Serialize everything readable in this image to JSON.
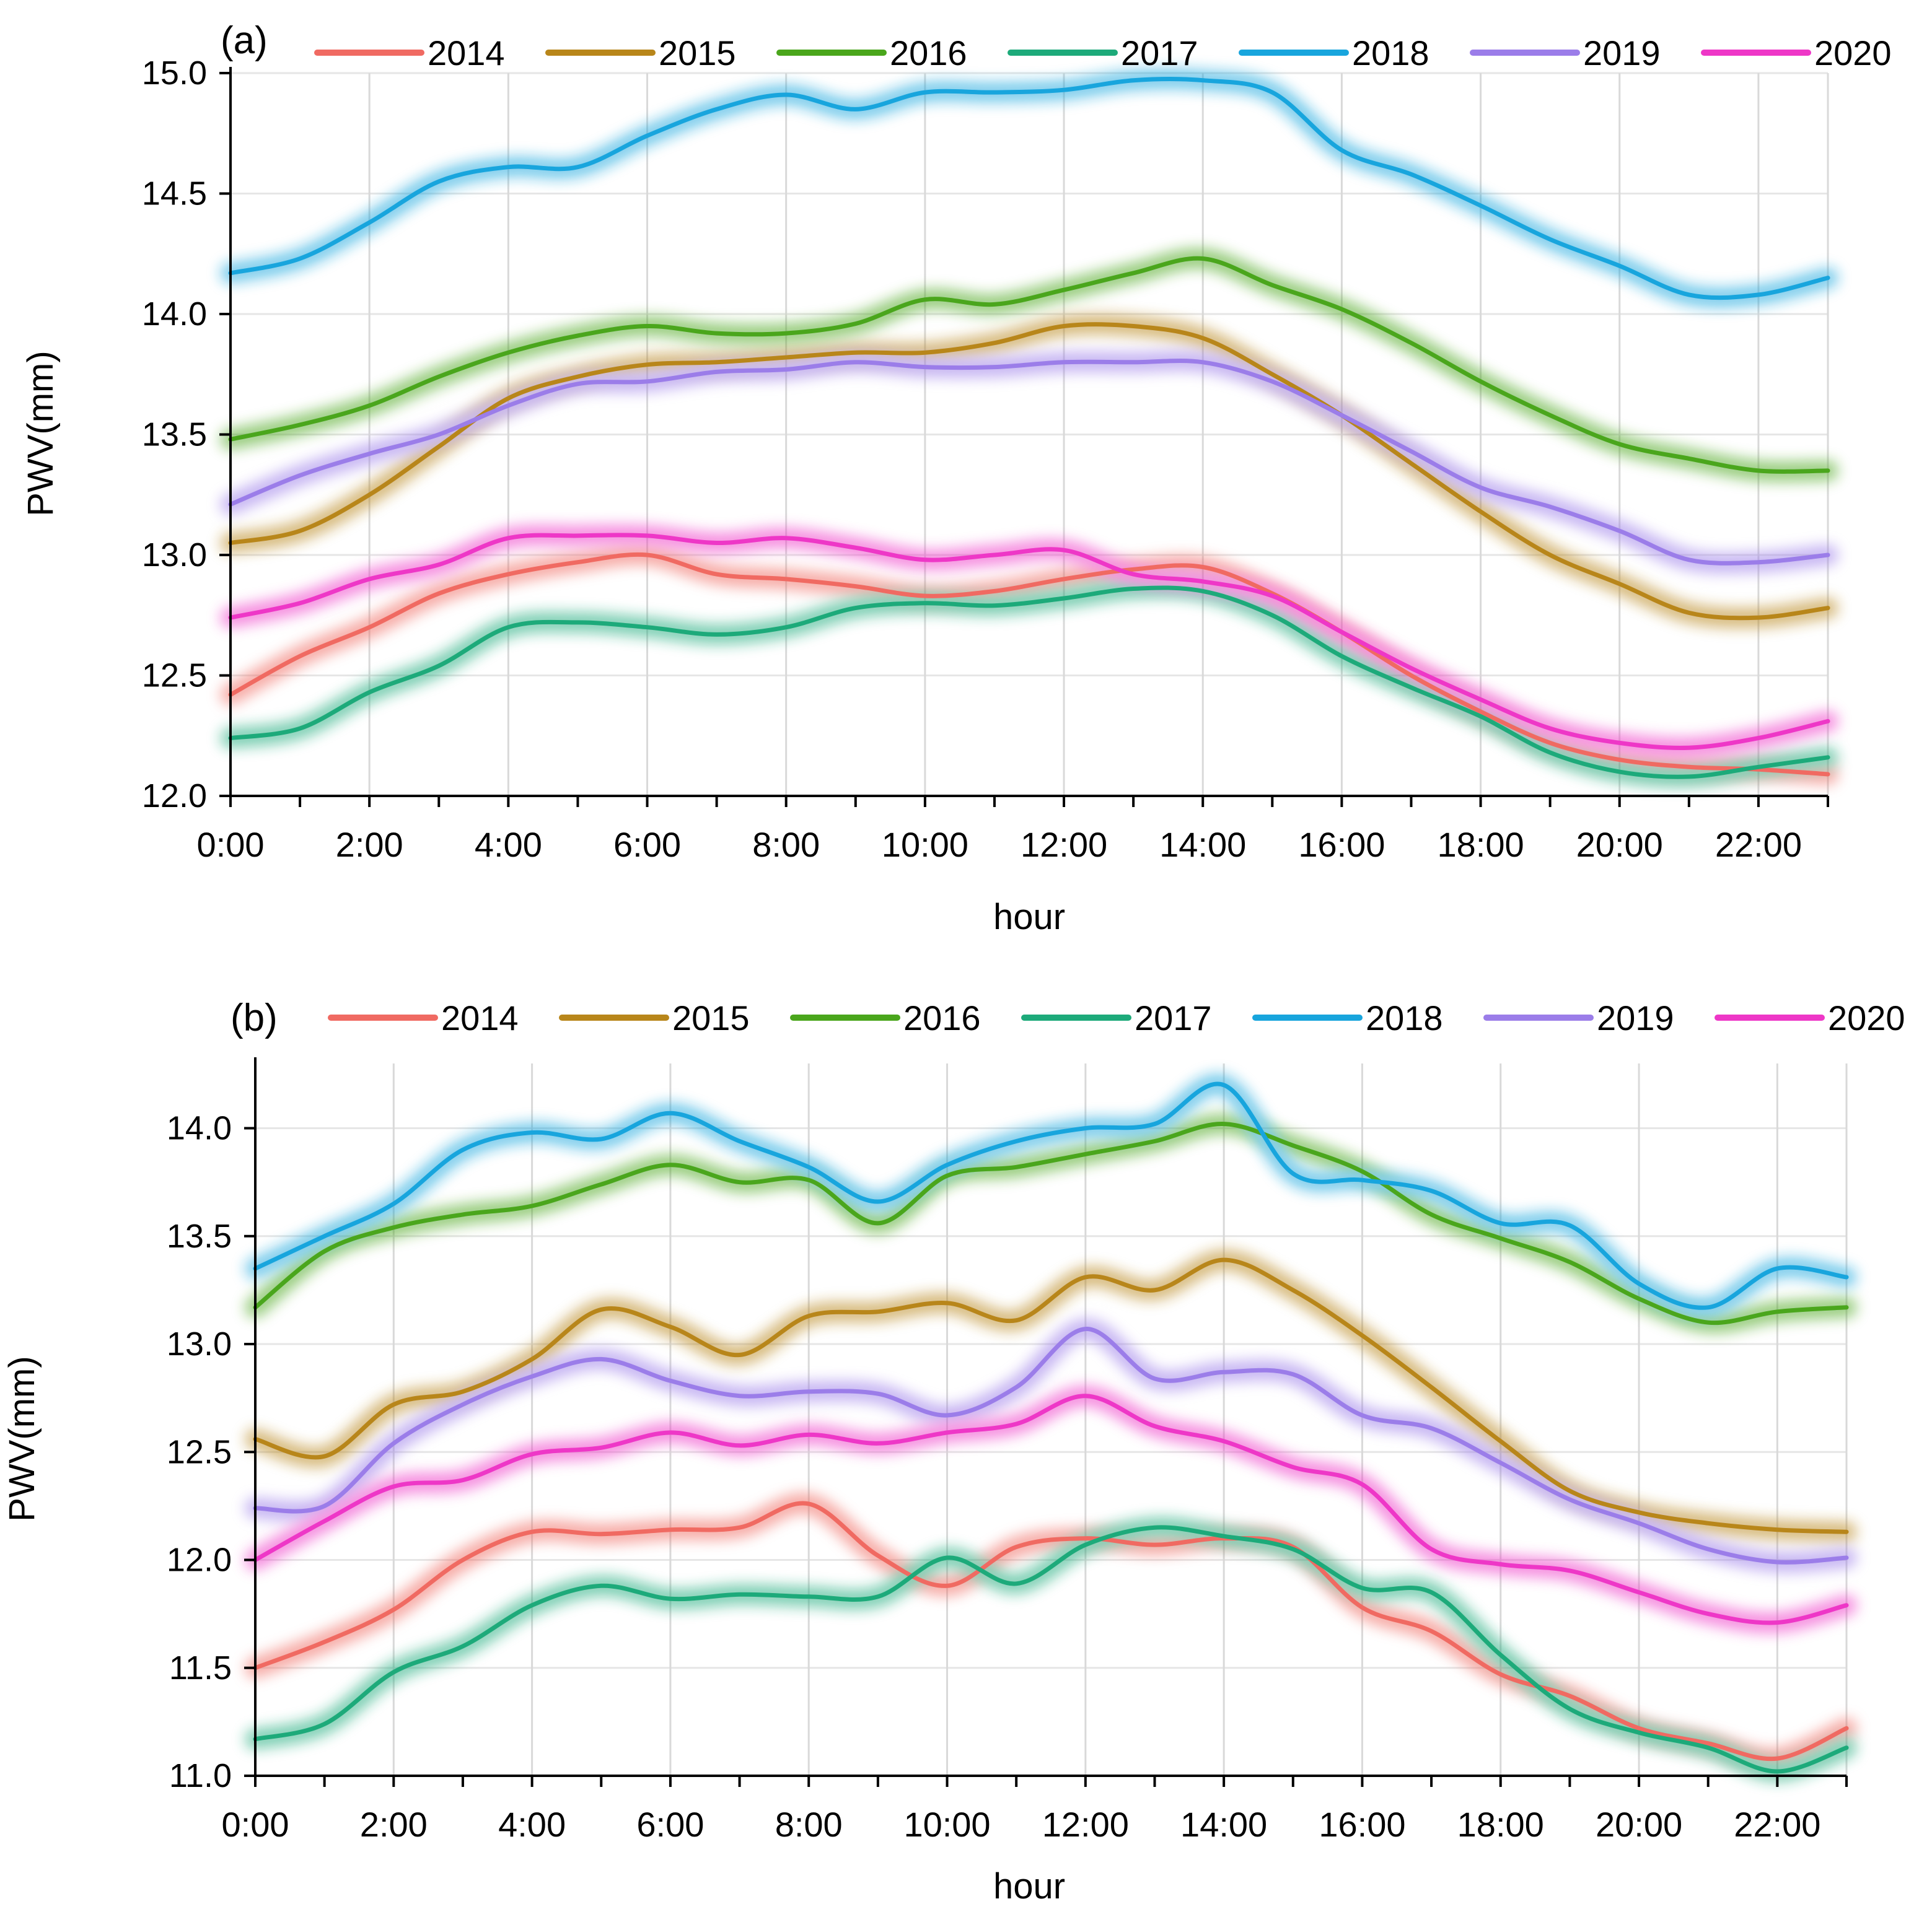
{
  "figure": {
    "shared_x_ticks": [
      "0:00",
      "2:00",
      "4:00",
      "6:00",
      "8:00",
      "10:00",
      "12:00",
      "14:00",
      "16:00",
      "18:00",
      "20:00",
      "22:00"
    ]
  },
  "chart_data": [
    {
      "type": "line",
      "panel_label": "(a)",
      "xlabel": "hour",
      "ylabel": "PWV(mm)",
      "x": [
        0,
        1,
        2,
        3,
        4,
        5,
        6,
        7,
        8,
        9,
        10,
        11,
        12,
        13,
        14,
        15,
        16,
        17,
        18,
        19,
        20,
        21,
        22,
        23
      ],
      "xticks": [
        "0:00",
        "2:00",
        "4:00",
        "6:00",
        "8:00",
        "10:00",
        "12:00",
        "14:00",
        "16:00",
        "18:00",
        "20:00",
        "22:00"
      ],
      "ylim": [
        12.0,
        15.0
      ],
      "yticks": [
        "12.0",
        "12.5",
        "13.0",
        "13.5",
        "14.0",
        "14.5",
        "15.0"
      ],
      "grid": true,
      "legend": "top",
      "series": [
        {
          "name": "2014",
          "color": "#f06a62",
          "values": [
            12.42,
            12.58,
            12.7,
            12.84,
            12.92,
            12.97,
            13.0,
            12.92,
            12.9,
            12.87,
            12.83,
            12.85,
            12.9,
            12.94,
            12.95,
            12.84,
            12.68,
            12.5,
            12.35,
            12.22,
            12.15,
            12.12,
            12.11,
            12.09
          ]
        },
        {
          "name": "2015",
          "color": "#b8861a",
          "values": [
            13.05,
            13.1,
            13.25,
            13.45,
            13.65,
            13.74,
            13.79,
            13.8,
            13.82,
            13.84,
            13.84,
            13.88,
            13.95,
            13.95,
            13.9,
            13.75,
            13.58,
            13.38,
            13.18,
            13.0,
            12.88,
            12.76,
            12.74,
            12.78
          ]
        },
        {
          "name": "2016",
          "color": "#4aa61c",
          "values": [
            13.48,
            13.54,
            13.62,
            13.74,
            13.84,
            13.91,
            13.95,
            13.92,
            13.92,
            13.96,
            14.06,
            14.04,
            14.1,
            14.17,
            14.23,
            14.12,
            14.02,
            13.88,
            13.72,
            13.58,
            13.46,
            13.4,
            13.35,
            13.35
          ]
        },
        {
          "name": "2017",
          "color": "#1daa7a",
          "values": [
            12.24,
            12.28,
            12.43,
            12.54,
            12.7,
            12.72,
            12.7,
            12.67,
            12.7,
            12.78,
            12.8,
            12.79,
            12.82,
            12.86,
            12.85,
            12.75,
            12.58,
            12.45,
            12.33,
            12.18,
            12.1,
            12.08,
            12.12,
            12.16
          ]
        },
        {
          "name": "2018",
          "color": "#18a5dd",
          "values": [
            14.17,
            14.23,
            14.38,
            14.55,
            14.61,
            14.61,
            14.74,
            14.85,
            14.91,
            14.85,
            14.92,
            14.92,
            14.93,
            14.97,
            14.97,
            14.92,
            14.68,
            14.58,
            14.45,
            14.31,
            14.2,
            14.08,
            14.08,
            14.15
          ]
        },
        {
          "name": "2019",
          "color": "#9b7de9",
          "values": [
            13.21,
            13.33,
            13.42,
            13.5,
            13.62,
            13.71,
            13.72,
            13.76,
            13.77,
            13.8,
            13.78,
            13.78,
            13.8,
            13.8,
            13.8,
            13.72,
            13.58,
            13.43,
            13.28,
            13.2,
            13.1,
            12.98,
            12.97,
            13.0
          ]
        },
        {
          "name": "2020",
          "color": "#ee37c7",
          "values": [
            12.74,
            12.8,
            12.9,
            12.96,
            13.07,
            13.08,
            13.08,
            13.05,
            13.07,
            13.03,
            12.98,
            13.0,
            13.02,
            12.92,
            12.89,
            12.83,
            12.68,
            12.53,
            12.4,
            12.28,
            12.22,
            12.2,
            12.24,
            12.31
          ]
        }
      ]
    },
    {
      "type": "line",
      "panel_label": "(b)",
      "xlabel": "hour",
      "ylabel": "PWV(mm)",
      "x": [
        0,
        1,
        2,
        3,
        4,
        5,
        6,
        7,
        8,
        9,
        10,
        11,
        12,
        13,
        14,
        15,
        16,
        17,
        18,
        19,
        20,
        21,
        22,
        23
      ],
      "xticks": [
        "0:00",
        "2:00",
        "4:00",
        "6:00",
        "8:00",
        "10:00",
        "12:00",
        "14:00",
        "16:00",
        "18:00",
        "20:00",
        "22:00"
      ],
      "ylim": [
        11.0,
        14.3
      ],
      "yticks": [
        "11.0",
        "11.5",
        "12.0",
        "12.5",
        "13.0",
        "13.5",
        "14.0"
      ],
      "grid": true,
      "legend": "top",
      "series": [
        {
          "name": "2014",
          "color": "#f06a62",
          "values": [
            11.5,
            11.62,
            11.77,
            12.0,
            12.13,
            12.12,
            12.14,
            12.15,
            12.26,
            12.02,
            11.88,
            12.06,
            12.1,
            12.07,
            12.1,
            12.06,
            11.78,
            11.67,
            11.47,
            11.37,
            11.22,
            11.15,
            11.08,
            11.22
          ]
        },
        {
          "name": "2015",
          "color": "#b8861a",
          "values": [
            12.56,
            12.48,
            12.72,
            12.78,
            12.93,
            13.16,
            13.08,
            12.95,
            13.13,
            13.15,
            13.19,
            13.11,
            13.31,
            13.25,
            13.39,
            13.25,
            13.04,
            12.8,
            12.55,
            12.32,
            12.22,
            12.17,
            12.14,
            12.13
          ]
        },
        {
          "name": "2016",
          "color": "#4aa61c",
          "values": [
            13.17,
            13.43,
            13.54,
            13.6,
            13.64,
            13.74,
            13.83,
            13.75,
            13.76,
            13.56,
            13.78,
            13.82,
            13.88,
            13.94,
            14.02,
            13.92,
            13.8,
            13.6,
            13.49,
            13.38,
            13.21,
            13.1,
            13.15,
            13.17
          ]
        },
        {
          "name": "2017",
          "color": "#1daa7a",
          "values": [
            11.17,
            11.24,
            11.48,
            11.6,
            11.79,
            11.88,
            11.82,
            11.84,
            11.83,
            11.83,
            12.01,
            11.89,
            12.07,
            12.15,
            12.11,
            12.05,
            11.87,
            11.85,
            11.56,
            11.31,
            11.2,
            11.13,
            11.02,
            11.13
          ]
        },
        {
          "name": "2018",
          "color": "#18a5dd",
          "values": [
            13.35,
            13.5,
            13.65,
            13.9,
            13.98,
            13.95,
            14.07,
            13.94,
            13.82,
            13.66,
            13.83,
            13.94,
            14.0,
            14.02,
            14.2,
            13.79,
            13.76,
            13.71,
            13.56,
            13.55,
            13.28,
            13.17,
            13.35,
            13.31
          ]
        },
        {
          "name": "2019",
          "color": "#9b7de9",
          "values": [
            12.24,
            12.25,
            12.54,
            12.72,
            12.85,
            12.93,
            12.83,
            12.76,
            12.78,
            12.77,
            12.67,
            12.8,
            13.07,
            12.84,
            12.87,
            12.86,
            12.67,
            12.61,
            12.45,
            12.28,
            12.17,
            12.05,
            11.99,
            12.01
          ]
        },
        {
          "name": "2020",
          "color": "#ee37c7",
          "values": [
            12.0,
            12.18,
            12.34,
            12.37,
            12.49,
            12.52,
            12.59,
            12.53,
            12.58,
            12.54,
            12.59,
            12.63,
            12.76,
            12.62,
            12.55,
            12.43,
            12.35,
            12.05,
            11.98,
            11.95,
            11.85,
            11.75,
            11.71,
            11.79
          ]
        }
      ]
    }
  ]
}
